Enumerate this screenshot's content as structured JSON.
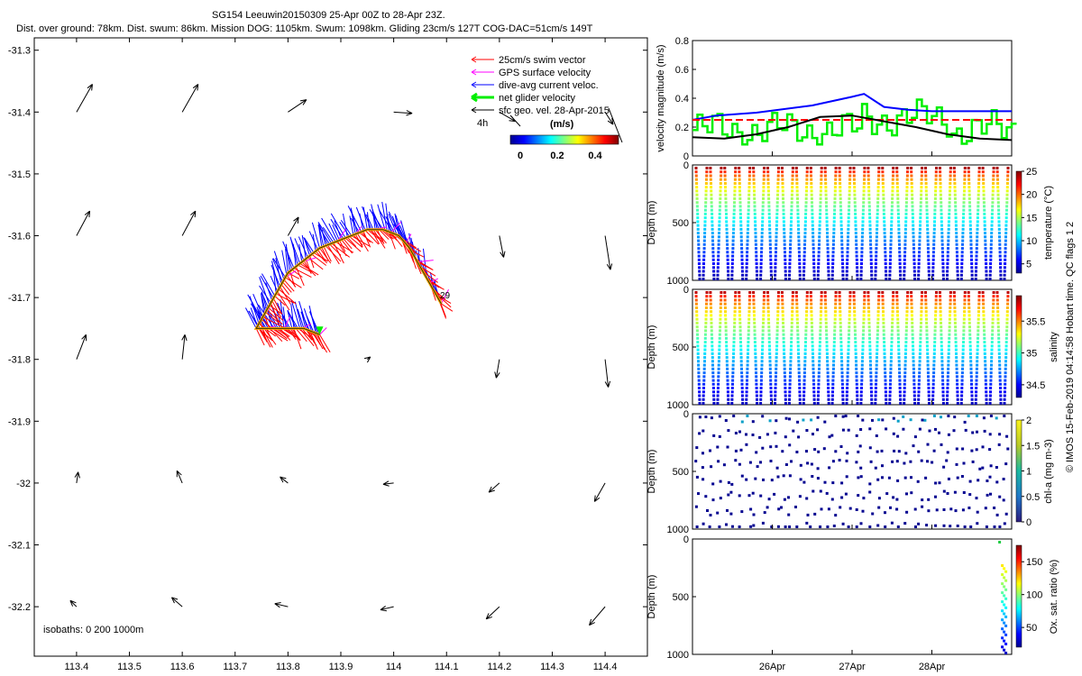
{
  "title_line1": "SG154 Leeuwin20150309 25-Apr 00Z to 28-Apr 23Z.",
  "title_line2": "Dist. over ground: 78km. Dist. swum: 86km. Mission DOG: 1105km. Swum: 1098km. Gliding 23cm/s 127T COG-DAC=51cm/s 149T",
  "copyright": "© IMOS 15-Feb-2019 04:14:58 Hobart time. QC flags 1 2",
  "colors": {
    "swim": "#ff0000",
    "gps": "#ff00ff",
    "dac": "#0000ff",
    "net": "#00ee00",
    "geo": "#000000",
    "track_edge": "#ffaa00"
  },
  "chart_data": [
    {
      "type": "map-vector",
      "name": "trajectory-map",
      "xlim": [
        113.32,
        114.48
      ],
      "ylim": [
        -32.28,
        -31.28
      ],
      "x_ticks": [
        113.4,
        113.5,
        113.6,
        113.7,
        113.8,
        113.9,
        114,
        114.1,
        114.2,
        114.3,
        114.4
      ],
      "y_ticks": [
        -31.3,
        -31.4,
        -31.5,
        -31.6,
        -31.7,
        -31.8,
        -31.9,
        -32,
        -32.1,
        -32.2
      ],
      "legend": [
        "25cm/s swim vector",
        "GPS surface velocity",
        "dive-avg current veloc.",
        "net glider velocity",
        "sfc geo. vel. 28-Apr-2015"
      ],
      "legend_4h": "4h",
      "colorbar_title": "(m/s)",
      "colorbar_ticks": [
        "0",
        "0.2",
        "0.4"
      ],
      "isobath_note": "isobaths: 0   200   1000m",
      "track_end_label": "29",
      "track": [
        [
          114.09,
          -31.71
        ],
        [
          114.07,
          -31.68
        ],
        [
          114.05,
          -31.65
        ],
        [
          114.03,
          -31.62
        ],
        [
          114.01,
          -31.6
        ],
        [
          113.98,
          -31.59
        ],
        [
          113.95,
          -31.59
        ],
        [
          113.92,
          -31.6
        ],
        [
          113.89,
          -31.61
        ],
        [
          113.86,
          -31.62
        ],
        [
          113.83,
          -31.64
        ],
        [
          113.8,
          -31.66
        ],
        [
          113.78,
          -31.69
        ],
        [
          113.76,
          -31.72
        ],
        [
          113.74,
          -31.75
        ],
        [
          113.77,
          -31.75
        ],
        [
          113.8,
          -31.75
        ],
        [
          113.83,
          -31.75
        ],
        [
          113.86,
          -31.76
        ]
      ],
      "geo_vectors": [
        [
          113.4,
          -31.4,
          0.03,
          0.045
        ],
        [
          113.6,
          -31.4,
          0.03,
          0.045
        ],
        [
          113.8,
          -31.4,
          0.035,
          0.02
        ],
        [
          114.0,
          -31.4,
          0.035,
          -0.002
        ],
        [
          114.2,
          -31.4,
          0.03,
          -0.015
        ],
        [
          114.4,
          -31.4,
          0.015,
          -0.02
        ],
        [
          113.4,
          -31.6,
          0.025,
          0.04
        ],
        [
          113.6,
          -31.6,
          0.025,
          0.04
        ],
        [
          113.8,
          -31.6,
          0.02,
          0.03
        ],
        [
          114.2,
          -31.6,
          0.008,
          -0.035
        ],
        [
          114.4,
          -31.6,
          0.01,
          -0.055
        ],
        [
          113.4,
          -31.8,
          0.018,
          0.04
        ],
        [
          113.6,
          -31.8,
          0.005,
          0.04
        ],
        [
          113.95,
          -31.8,
          0.006,
          0.004
        ],
        [
          114.2,
          -31.8,
          -0.006,
          -0.03
        ],
        [
          114.4,
          -31.8,
          0.006,
          -0.045
        ],
        [
          113.4,
          -32.0,
          0.003,
          0.018
        ],
        [
          113.6,
          -32.0,
          -0.01,
          0.02
        ],
        [
          113.8,
          -32.0,
          -0.015,
          0.01
        ],
        [
          114.0,
          -32.0,
          -0.02,
          -0.002
        ],
        [
          114.2,
          -32.0,
          -0.02,
          -0.015
        ],
        [
          114.4,
          -32.0,
          -0.02,
          -0.03
        ],
        [
          113.4,
          -32.2,
          -0.012,
          0.01
        ],
        [
          113.6,
          -32.2,
          -0.02,
          0.015
        ],
        [
          113.8,
          -32.2,
          -0.025,
          0.005
        ],
        [
          114.0,
          -32.2,
          -0.025,
          -0.005
        ],
        [
          114.2,
          -32.2,
          -0.025,
          -0.02
        ],
        [
          114.4,
          -32.2,
          -0.03,
          -0.03
        ]
      ]
    },
    {
      "type": "line",
      "name": "velocity-panel",
      "ylabel": "velocity magnitude (m/s)",
      "ylim": [
        0,
        0.8
      ],
      "y_ticks": [
        0,
        0.2,
        0.4,
        0.6,
        0.8
      ],
      "day_range": [
        25.0,
        29.0
      ],
      "series": [
        {
          "name": "dive-avg current",
          "color": "#0000ff",
          "x": [
            25.0,
            25.3,
            25.8,
            26.5,
            27.0,
            27.15,
            27.4,
            27.7,
            28.0,
            28.5,
            29.0
          ],
          "y": [
            0.25,
            0.28,
            0.3,
            0.35,
            0.41,
            0.43,
            0.34,
            0.32,
            0.31,
            0.31,
            0.31
          ]
        },
        {
          "name": "25cm/s swim",
          "color": "#ff0000",
          "x": [
            25.0,
            29.0
          ],
          "y": [
            0.25,
            0.25
          ],
          "dashed": true
        },
        {
          "name": "sfc geo",
          "color": "#000000",
          "x": [
            25.0,
            25.4,
            25.8,
            26.2,
            26.6,
            27.0,
            27.4,
            27.8,
            28.2,
            28.6,
            29.0
          ],
          "y": [
            0.13,
            0.12,
            0.15,
            0.2,
            0.27,
            0.28,
            0.24,
            0.2,
            0.15,
            0.12,
            0.11
          ]
        }
      ]
    },
    {
      "type": "scatter",
      "name": "temperature-panel",
      "ylabel": "Depth (m)",
      "y_ticks": [
        0,
        500,
        1000
      ],
      "colorbar_label": "temperature (°C)",
      "colorbar_ticks": [
        5,
        10,
        15,
        20,
        25
      ],
      "colorbar_range": [
        3,
        25
      ],
      "value_top": 24,
      "value_bottom": 4
    },
    {
      "type": "scatter",
      "name": "salinity-panel",
      "ylabel": "Depth (m)",
      "y_ticks": [
        0,
        500,
        1000
      ],
      "colorbar_label": "salinity",
      "colorbar_ticks": [
        34.5,
        35,
        35.5
      ],
      "colorbar_range": [
        34.3,
        35.9
      ],
      "value_top": 35.8,
      "value_bottom": 34.4
    },
    {
      "type": "scatter",
      "name": "chla-panel",
      "ylabel": "Depth (m)",
      "y_ticks": [
        0,
        500,
        1000
      ],
      "colorbar_label": "chl-a (mg m-3)",
      "colorbar_ticks": [
        0,
        0.5,
        1,
        1.5,
        2
      ],
      "colorbar_range": [
        0,
        2
      ]
    },
    {
      "type": "scatter",
      "name": "oxygen-panel",
      "ylabel": "Depth (m)",
      "y_ticks": [
        0,
        500,
        1000
      ],
      "colorbar_label": "Ox. sat. ratio (%)",
      "colorbar_ticks": [
        50,
        100,
        150
      ],
      "colorbar_range": [
        20,
        175
      ]
    }
  ],
  "time_ticks": [
    {
      "day": 26,
      "label": "26Apr"
    },
    {
      "day": 27,
      "label": "27Apr"
    },
    {
      "day": 28,
      "label": "28Apr"
    }
  ]
}
